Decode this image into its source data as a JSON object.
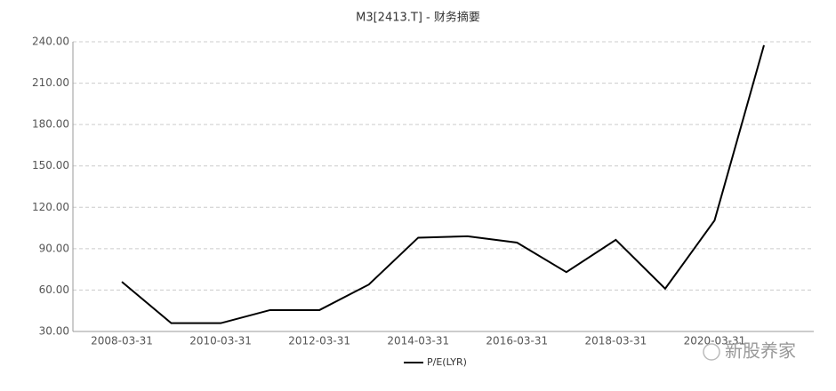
{
  "chart_data": {
    "type": "line",
    "title": "M3[2413.T] - 财务摘要",
    "categories": [
      "2008-03-31",
      null,
      "2010-03-31",
      null,
      "2012-03-31",
      null,
      "2014-03-31",
      null,
      "2016-03-31",
      null,
      "2018-03-31",
      null,
      "2020-03-31",
      null
    ],
    "series": [
      {
        "name": "P/E(LYR)",
        "color": "#000000",
        "values": [
          66,
          36,
          36,
          45.5,
          45.5,
          64,
          98,
          99,
          94.4,
          73,
          96.4,
          61,
          110.5,
          237.5
        ]
      }
    ],
    "ylim": [
      30,
      240
    ],
    "yticks": [
      {
        "value": 30,
        "label": "30.00"
      },
      {
        "value": 60,
        "label": "60.00"
      },
      {
        "value": 90,
        "label": "90.00"
      },
      {
        "value": 120,
        "label": "120.00"
      },
      {
        "value": 150,
        "label": "150.00"
      },
      {
        "value": 180,
        "label": "180.00"
      },
      {
        "value": 210,
        "label": "210.00"
      },
      {
        "value": 240,
        "label": "240.00"
      }
    ],
    "grid": true,
    "legend": "bottom"
  },
  "watermark": "新股养家"
}
